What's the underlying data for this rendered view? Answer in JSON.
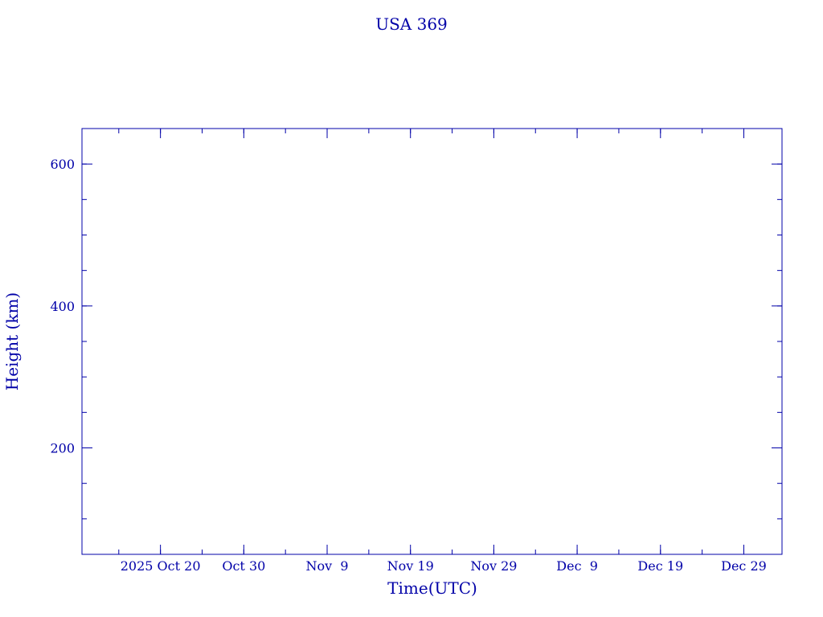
{
  "chart_data": {
    "type": "line",
    "title": "USA 369",
    "xlabel": "Time(UTC)",
    "ylabel": "Height (km)",
    "xlim": [
      "2025-10-10T14:00",
      "2026-01-02T14:00"
    ],
    "ylim": [
      50,
      650
    ],
    "x_ticks": [
      {
        "date": "2025-10-20",
        "label": "2025 Oct 20"
      },
      {
        "date": "2025-10-30",
        "label": "Oct 30"
      },
      {
        "date": "2025-11-09",
        "label": "Nov  9"
      },
      {
        "date": "2025-11-19",
        "label": "Nov 19"
      },
      {
        "date": "2025-11-29",
        "label": "Nov 29"
      },
      {
        "date": "2025-12-09",
        "label": "Dec  9"
      },
      {
        "date": "2025-12-19",
        "label": "Dec 19"
      },
      {
        "date": "2025-12-29",
        "label": "Dec 29"
      }
    ],
    "x_minor_step_days": 5,
    "y_ticks": [
      {
        "value": 200,
        "label": "200"
      },
      {
        "value": 400,
        "label": "400"
      },
      {
        "value": 600,
        "label": "600"
      }
    ],
    "y_minor_step": 50,
    "grid": false,
    "series": [],
    "color": "#0000a8"
  }
}
